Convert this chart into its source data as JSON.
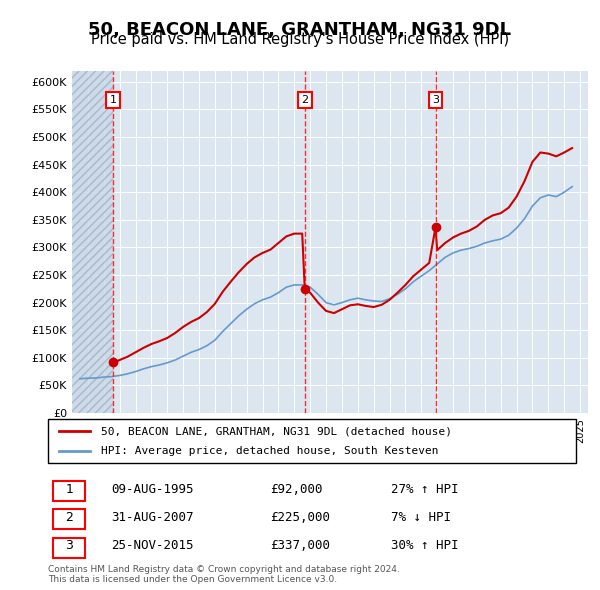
{
  "title": "50, BEACON LANE, GRANTHAM, NG31 9DL",
  "subtitle": "Price paid vs. HM Land Registry's House Price Index (HPI)",
  "title_fontsize": 13,
  "subtitle_fontsize": 10.5,
  "ylim": [
    0,
    620000
  ],
  "yticks": [
    0,
    50000,
    100000,
    150000,
    200000,
    250000,
    300000,
    350000,
    400000,
    450000,
    500000,
    550000,
    600000
  ],
  "ytick_labels": [
    "£0",
    "£50K",
    "£100K",
    "£150K",
    "£200K",
    "£250K",
    "£300K",
    "£350K",
    "£400K",
    "£450K",
    "£500K",
    "£550K",
    "£600K"
  ],
  "xlim_start": 1993.0,
  "xlim_end": 2025.5,
  "bg_color": "#dce6f0",
  "hatch_color": "#b8c8d8",
  "sale_color": "#cc0000",
  "hpi_color": "#6699cc",
  "transactions": [
    {
      "year": 1995.6,
      "price": 92000,
      "label": "1"
    },
    {
      "year": 2007.66,
      "price": 225000,
      "label": "2"
    },
    {
      "year": 2015.9,
      "price": 337000,
      "label": "3"
    }
  ],
  "transaction_table": [
    {
      "num": "1",
      "date": "09-AUG-1995",
      "price": "£92,000",
      "hpi": "27% ↑ HPI"
    },
    {
      "num": "2",
      "date": "31-AUG-2007",
      "price": "£225,000",
      "hpi": "7% ↓ HPI"
    },
    {
      "num": "3",
      "date": "25-NOV-2015",
      "price": "£337,000",
      "hpi": "30% ↑ HPI"
    }
  ],
  "legend_entries": [
    "50, BEACON LANE, GRANTHAM, NG31 9DL (detached house)",
    "HPI: Average price, detached house, South Kesteven"
  ],
  "footnote": "Contains HM Land Registry data © Crown copyright and database right 2024.\nThis data is licensed under the Open Government Licence v3.0.",
  "hpi_data_x": [
    1993.5,
    1994.0,
    1994.5,
    1995.0,
    1995.5,
    1996.0,
    1996.5,
    1997.0,
    1997.5,
    1998.0,
    1998.5,
    1999.0,
    1999.5,
    2000.0,
    2000.5,
    2001.0,
    2001.5,
    2002.0,
    2002.5,
    2003.0,
    2003.5,
    2004.0,
    2004.5,
    2005.0,
    2005.5,
    2006.0,
    2006.5,
    2007.0,
    2007.5,
    2008.0,
    2008.5,
    2009.0,
    2009.5,
    2010.0,
    2010.5,
    2011.0,
    2011.5,
    2012.0,
    2012.5,
    2013.0,
    2013.5,
    2014.0,
    2014.5,
    2015.0,
    2015.5,
    2016.0,
    2016.5,
    2017.0,
    2017.5,
    2018.0,
    2018.5,
    2019.0,
    2019.5,
    2020.0,
    2020.5,
    2021.0,
    2021.5,
    2022.0,
    2022.5,
    2023.0,
    2023.5,
    2024.0,
    2024.5
  ],
  "hpi_data_y": [
    62000,
    63000,
    63500,
    65000,
    66000,
    68000,
    71000,
    75000,
    80000,
    84000,
    87000,
    91000,
    96000,
    103000,
    110000,
    115000,
    122000,
    132000,
    148000,
    162000,
    176000,
    188000,
    198000,
    205000,
    210000,
    218000,
    228000,
    232000,
    232000,
    228000,
    215000,
    200000,
    196000,
    200000,
    205000,
    208000,
    205000,
    203000,
    202000,
    207000,
    215000,
    225000,
    238000,
    248000,
    258000,
    270000,
    282000,
    290000,
    295000,
    298000,
    302000,
    308000,
    312000,
    315000,
    322000,
    335000,
    352000,
    375000,
    390000,
    395000,
    392000,
    400000,
    410000
  ],
  "sale_line_x": [
    1993.5,
    1994.0,
    1994.5,
    1995.0,
    1995.5,
    1995.66,
    1996.0,
    1996.5,
    1997.0,
    1997.5,
    1998.0,
    1998.5,
    1999.0,
    1999.5,
    2000.0,
    2000.5,
    2001.0,
    2001.5,
    2002.0,
    2002.5,
    2003.0,
    2003.5,
    2004.0,
    2004.5,
    2005.0,
    2005.5,
    2006.0,
    2006.5,
    2007.0,
    2007.5,
    2007.66,
    2008.0,
    2008.5,
    2009.0,
    2009.5,
    2010.0,
    2010.5,
    2011.0,
    2011.5,
    2012.0,
    2012.5,
    2013.0,
    2013.5,
    2014.0,
    2014.5,
    2015.0,
    2015.5,
    2015.9,
    2016.0,
    2016.5,
    2017.0,
    2017.5,
    2018.0,
    2018.5,
    2019.0,
    2019.5,
    2020.0,
    2020.5,
    2021.0,
    2021.5,
    2022.0,
    2022.5,
    2023.0,
    2023.5,
    2024.0,
    2024.5
  ],
  "sale_line_y": [
    null,
    null,
    null,
    null,
    null,
    92000,
    96000,
    102000,
    110000,
    118000,
    125000,
    130000,
    136000,
    145000,
    156000,
    165000,
    172000,
    183000,
    198000,
    220000,
    238000,
    255000,
    270000,
    282000,
    290000,
    296000,
    308000,
    320000,
    325000,
    325000,
    225000,
    218000,
    200000,
    185000,
    181000,
    188000,
    195000,
    197000,
    194000,
    192000,
    196000,
    205000,
    218000,
    232000,
    248000,
    260000,
    272000,
    337000,
    295000,
    308000,
    318000,
    325000,
    330000,
    338000,
    350000,
    358000,
    362000,
    372000,
    392000,
    420000,
    455000,
    472000,
    470000,
    465000,
    472000,
    480000
  ]
}
